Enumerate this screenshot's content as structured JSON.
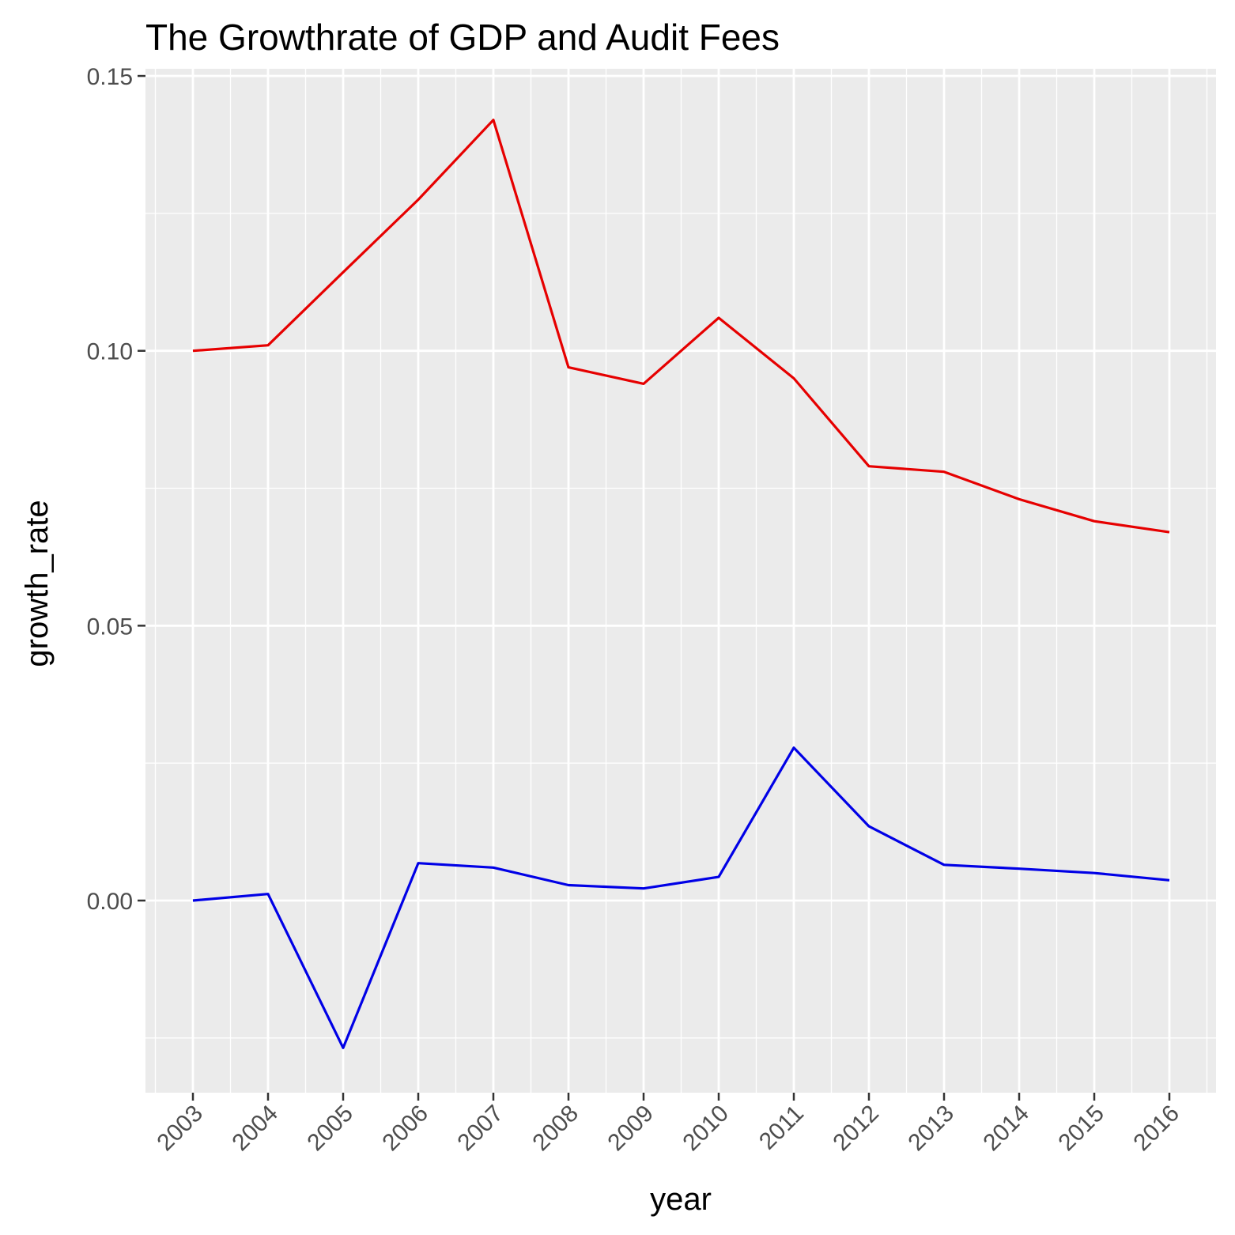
{
  "chart_data": {
    "type": "line",
    "title": "The Growthrate of GDP and Audit Fees",
    "xlabel": "year",
    "ylabel": "growth_rate",
    "x": [
      "2003",
      "2004",
      "2005",
      "2006",
      "2007",
      "2008",
      "2009",
      "2010",
      "2011",
      "2012",
      "2013",
      "2014",
      "2015",
      "2016"
    ],
    "y_ticks": [
      "0.00",
      "0.05",
      "0.10",
      "0.15"
    ],
    "ylim": [
      -0.035,
      0.15
    ],
    "grid": true,
    "legend": "none",
    "series": [
      {
        "color": "#e60000",
        "values": [
          0.1,
          0.101,
          0.1143,
          0.1275,
          0.142,
          0.097,
          0.094,
          0.106,
          0.095,
          0.079,
          0.078,
          0.073,
          0.069,
          0.067
        ]
      },
      {
        "color": "#0000e6",
        "values": [
          0.0,
          0.0012,
          -0.0268,
          0.0068,
          0.006,
          0.0028,
          0.0022,
          0.0043,
          0.0278,
          0.0135,
          0.0065,
          0.0058,
          0.005,
          0.0037
        ]
      }
    ]
  }
}
